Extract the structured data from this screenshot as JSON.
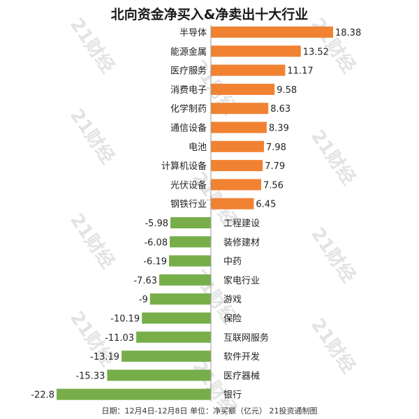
{
  "title": "北向资金净买入&净卖出十大行业",
  "footnote": "日期：12月4日-12月8日 单位：净买额（亿元） 21投资通制图",
  "watermark": "21财经",
  "colors": {
    "positive": "#F08232",
    "negative": "#77AE4A",
    "text": "#222222"
  },
  "chart_data": {
    "type": "bar",
    "orientation": "horizontal",
    "title": "北向资金净买入&净卖出十大行业",
    "categories": [
      "半导体",
      "能源金属",
      "医疗服务",
      "消费电子",
      "化学制药",
      "通信设备",
      "电池",
      "计算机设备",
      "光伏设备",
      "钢铁行业",
      "工程建设",
      "装修建材",
      "中药",
      "家电行业",
      "游戏",
      "保险",
      "互联网服务",
      "软件开发",
      "医疗器械",
      "银行"
    ],
    "values": [
      18.38,
      13.52,
      11.17,
      9.58,
      8.63,
      8.39,
      7.98,
      7.79,
      7.56,
      6.45,
      -5.98,
      -6.08,
      -6.19,
      -7.63,
      -9,
      -10.19,
      -11.03,
      -13.19,
      -15.33,
      -22.8
    ],
    "value_labels": [
      "18.38",
      "13.52",
      "11.17",
      "9.58",
      "8.63",
      "8.39",
      "7.98",
      "7.79",
      "7.56",
      "6.45",
      "-5.98",
      "-6.08",
      "-6.19",
      "-7.63",
      "-9",
      "-10.19",
      "-11.03",
      "-13.19",
      "-15.33",
      "-22.8"
    ],
    "xlim": [
      -22.8,
      18.38
    ],
    "grid": false,
    "legend": "none"
  }
}
